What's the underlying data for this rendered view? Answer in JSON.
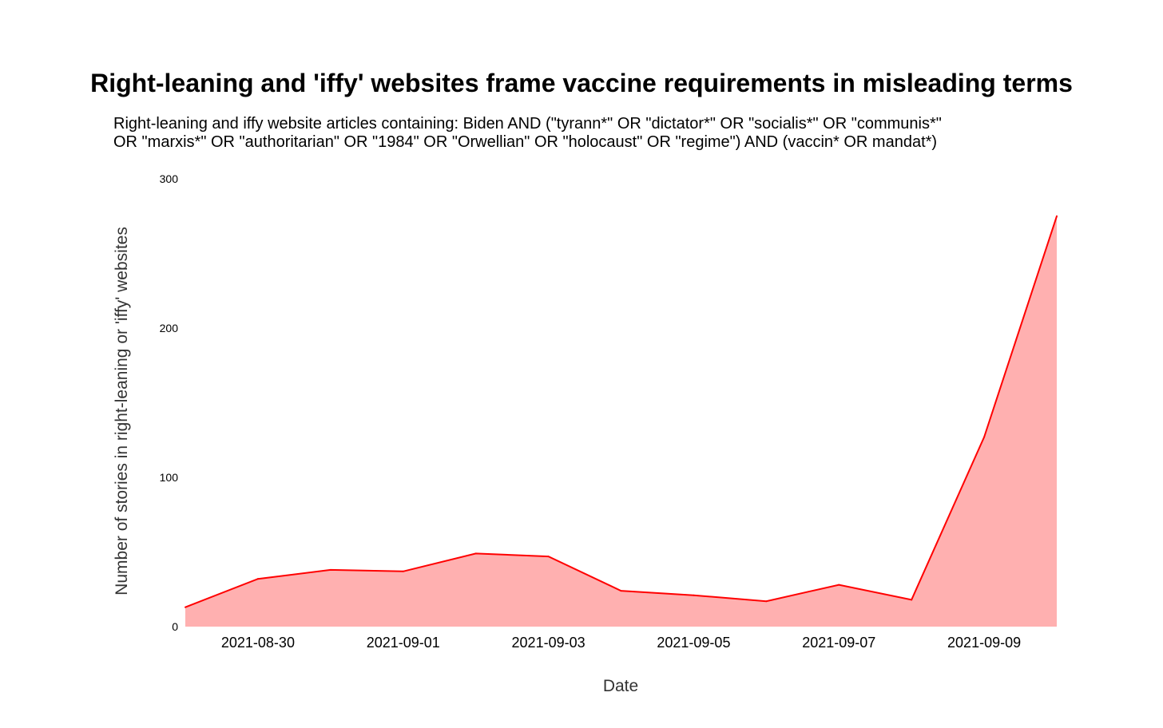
{
  "chart_data": {
    "type": "area",
    "title": "Right-leaning and 'iffy' websites frame vaccine requirements in misleading terms",
    "subtitle_lines": [
      "Right-leaning and iffy website articles containing: Biden AND (\"tyrann*\" OR \"dictator*\" OR \"socialis*\" OR \"communis*\"",
      "OR \"marxis*\" OR \"authoritarian\" OR \"1984\" OR \"Orwellian\" OR \"holocaust\" OR \"regime\") AND (vaccin* OR mandat*)"
    ],
    "xlabel": "Date",
    "ylabel": "Number of stories in right-leaning or 'iffy' websites",
    "ylim": [
      0,
      300
    ],
    "yticks": [
      0,
      100,
      200,
      300
    ],
    "xticks": [
      "2021-08-30",
      "2021-09-01",
      "2021-09-03",
      "2021-09-05",
      "2021-09-07",
      "2021-09-09"
    ],
    "xlim": [
      "2021-08-29",
      "2021-09-10"
    ],
    "grid": false,
    "colors": {
      "line": "#ff0000",
      "fill": "#ffb0b0"
    },
    "series": [
      {
        "x": [
          "2021-08-29",
          "2021-08-30",
          "2021-08-31",
          "2021-09-01",
          "2021-09-02",
          "2021-09-03",
          "2021-09-04",
          "2021-09-05",
          "2021-09-06",
          "2021-09-07",
          "2021-09-08",
          "2021-09-09",
          "2021-09-10"
        ],
        "values": [
          13,
          32,
          38,
          37,
          49,
          47,
          24,
          21,
          17,
          28,
          18,
          127,
          275
        ]
      }
    ]
  }
}
